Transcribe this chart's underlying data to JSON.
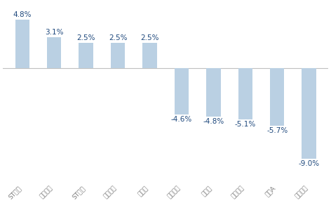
{
  "categories": [
    "ST加加",
    "日辰股份",
    "ST春天",
    "庄园牧场",
    "煌上煌",
    "美鑫股份",
    "金储山",
    "海南椰岛",
    "保价A",
    "金牌酒业"
  ],
  "values": [
    4.8,
    3.1,
    2.5,
    2.5,
    2.5,
    -4.6,
    -4.8,
    -5.1,
    -5.7,
    -9.0
  ],
  "bar_color": "#bad0e3",
  "background_color": "#ffffff",
  "label_color": "#1f497d",
  "label_fontsize": 7.5,
  "tick_fontsize": 6.5,
  "tick_color": "#7f7f7f",
  "ylim": [
    -11.5,
    6.5
  ],
  "bar_width": 0.45,
  "figsize": [
    4.72,
    2.89
  ],
  "dpi": 100
}
